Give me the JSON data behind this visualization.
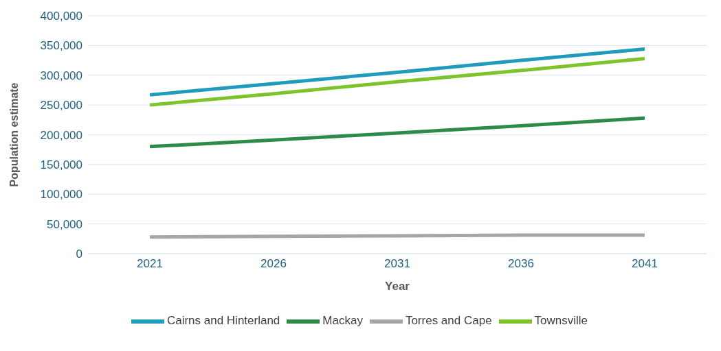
{
  "chart_data": {
    "type": "line",
    "xlabel": "Year",
    "ylabel": "Population estimate",
    "categories": [
      "2021",
      "2026",
      "2031",
      "2036",
      "2041"
    ],
    "series": [
      {
        "name": "Cairns and Hinterland",
        "color": "#1f9bbd",
        "values": [
          267000,
          286000,
          305000,
          325000,
          344000
        ]
      },
      {
        "name": "Mackay",
        "color": "#2e8b47",
        "values": [
          180000,
          191000,
          203000,
          215000,
          228000
        ]
      },
      {
        "name": "Torres and Cape",
        "color": "#a6a6a6",
        "values": [
          28000,
          29000,
          30000,
          31000,
          31000
        ]
      },
      {
        "name": "Townsville",
        "color": "#7cc42a",
        "values": [
          250000,
          269000,
          289000,
          308000,
          328000
        ]
      }
    ],
    "ylim": [
      0,
      400000
    ],
    "yticks": [
      0,
      {
        "value": 50000,
        "label": "50,000"
      },
      {
        "value": 100000,
        "label": "100,000"
      },
      {
        "value": 150000,
        "label": "150,000"
      },
      {
        "value": 200000,
        "label": "200,000"
      },
      {
        "value": 250000,
        "label": "250,000"
      },
      {
        "value": 300000,
        "label": "300,000"
      },
      {
        "value": 350000,
        "label": "350,000"
      },
      {
        "value": 400000,
        "label": "400,000"
      }
    ],
    "grid": "y",
    "legend": "bottom",
    "marker": "none",
    "line_style": "solid"
  }
}
